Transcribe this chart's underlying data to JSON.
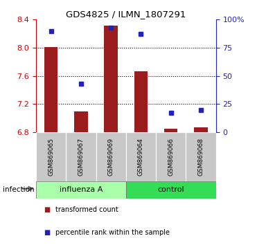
{
  "title": "GDS4825 / ILMN_1807291",
  "samples": [
    "GSM869065",
    "GSM869067",
    "GSM869069",
    "GSM869064",
    "GSM869066",
    "GSM869068"
  ],
  "groups": [
    "influenza A",
    "influenza A",
    "influenza A",
    "control",
    "control",
    "control"
  ],
  "group_labels": [
    "influenza A",
    "control"
  ],
  "transformed_count": [
    8.01,
    7.1,
    8.31,
    7.67,
    6.855,
    6.87
  ],
  "percentile_rank": [
    90,
    43,
    93,
    87,
    17,
    20
  ],
  "bar_bottom": 6.8,
  "ylim_left": [
    6.8,
    8.4
  ],
  "ylim_right": [
    0,
    100
  ],
  "yticks_left": [
    6.8,
    7.2,
    7.6,
    8.0,
    8.4
  ],
  "yticks_right": [
    0,
    25,
    50,
    75,
    100
  ],
  "yticklabels_right": [
    "0",
    "25",
    "50",
    "75",
    "100%"
  ],
  "bar_color": "#9B1C1C",
  "square_color": "#2222BB",
  "left_axis_color": "#CC0000",
  "right_axis_color": "#2222BB",
  "group_band_color_influenza": "#AAFFAA",
  "group_band_color_control": "#33DD55",
  "xlabel_infection": "infection",
  "legend_items": [
    "transformed count",
    "percentile rank within the sample"
  ],
  "background_plot": "#FFFFFF",
  "sample_label_bg": "#C8C8C8",
  "figsize": [
    3.71,
    3.54
  ],
  "dpi": 100
}
